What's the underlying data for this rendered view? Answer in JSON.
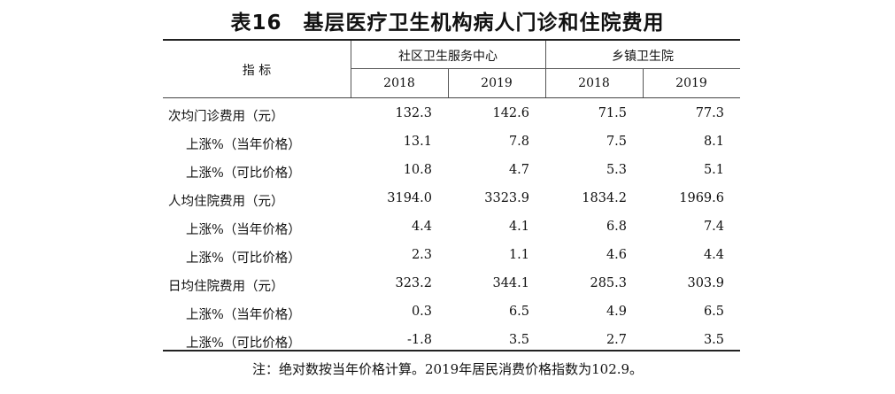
{
  "title": "表16　基层医疗卫生机构病人门诊和住院费用",
  "header": {
    "indicator": "指 标",
    "group1": "社区卫生服务中心",
    "group2": "乡镇卫生院",
    "years": [
      "2018",
      "2019",
      "2018",
      "2019"
    ]
  },
  "rows": [
    {
      "label": "次均门诊费用（元）",
      "indent": false,
      "values": [
        "132.3",
        "142.6",
        "71.5",
        "77.3"
      ]
    },
    {
      "label": "上涨%（当年价格）",
      "indent": true,
      "values": [
        "13.1",
        "7.8",
        "7.5",
        "8.1"
      ]
    },
    {
      "label": "上涨%（可比价格）",
      "indent": true,
      "values": [
        "10.8",
        "4.7",
        "5.3",
        "5.1"
      ]
    },
    {
      "label": "人均住院费用（元）",
      "indent": false,
      "values": [
        "3194.0",
        "3323.9",
        "1834.2",
        "1969.6"
      ]
    },
    {
      "label": "上涨%（当年价格）",
      "indent": true,
      "values": [
        "4.4",
        "4.1",
        "6.8",
        "7.4"
      ]
    },
    {
      "label": "上涨%（可比价格）",
      "indent": true,
      "values": [
        "2.3",
        "1.1",
        "4.6",
        "4.4"
      ]
    },
    {
      "label": "日均住院费用（元）",
      "indent": false,
      "values": [
        "323.2",
        "344.1",
        "285.3",
        "303.9"
      ]
    },
    {
      "label": "上涨%（当年价格）",
      "indent": true,
      "values": [
        "0.3",
        "6.5",
        "4.9",
        "6.5"
      ]
    },
    {
      "label": "上涨%（可比价格）",
      "indent": true,
      "values": [
        "-1.8",
        "3.5",
        "2.7",
        "3.5"
      ]
    }
  ],
  "note": "注：绝对数按当年价格计算。2019年居民消费价格指数为102.9。"
}
